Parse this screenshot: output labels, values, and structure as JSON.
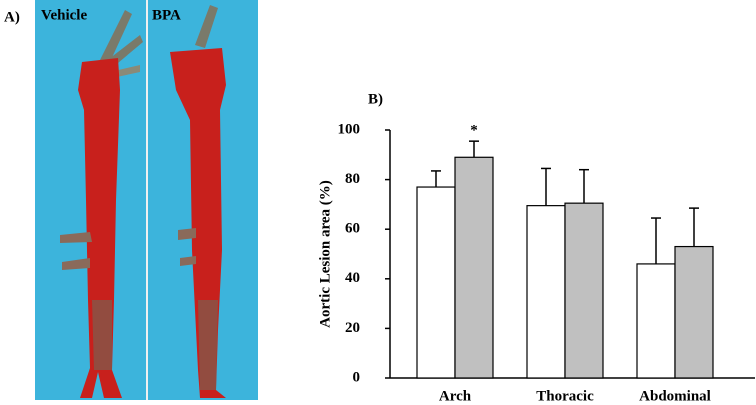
{
  "panel_a": {
    "label": "A)",
    "images": [
      "Vehicle",
      "BPA"
    ]
  },
  "chart_data": {
    "type": "bar",
    "panel_label": "B)",
    "ylabel": "Aortic Lesion area (%)",
    "categories": [
      "Arch",
      "Thoracic",
      "Abdominal"
    ],
    "series": [
      {
        "color": "#ffffff",
        "values": [
          77,
          69.5,
          46
        ],
        "errors": [
          6.5,
          15,
          18.5
        ]
      },
      {
        "color": "#c0c0c0",
        "values": [
          89,
          70.5,
          53
        ],
        "errors": [
          6.5,
          13.5,
          15.5
        ]
      }
    ],
    "annotation": "*",
    "ylim": [
      0,
      100
    ],
    "yticks": [
      0,
      20,
      40,
      60,
      80,
      100
    ]
  }
}
